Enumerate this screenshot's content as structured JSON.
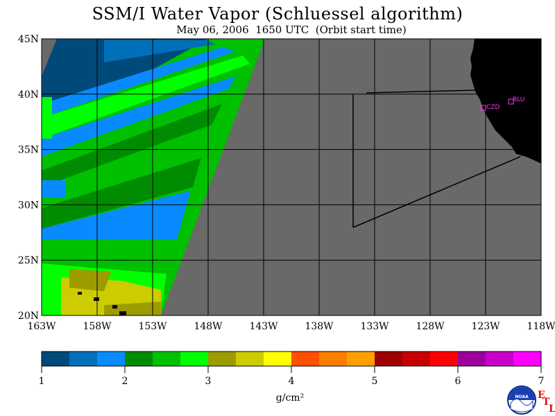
{
  "title": "SSM/I Water Vapor (Schluessel algorithm)",
  "subtitle": "May 06, 2006  1650 UTC  (Orbit start time)",
  "lat_labels": [
    "45N",
    "40N",
    "35N",
    "30N",
    "25N",
    "20N"
  ],
  "lon_labels": [
    "163W",
    "158W",
    "153W",
    "148W",
    "143W",
    "138W",
    "133W",
    "128W",
    "123W",
    "118W"
  ],
  "colorbar": {
    "ticks": [
      "1",
      "2",
      "3",
      "4",
      "5",
      "6",
      "7"
    ],
    "units": "g/cm²",
    "colors": [
      "#004a7a",
      "#0070bb",
      "#0a8aff",
      "#008c00",
      "#00c000",
      "#00ff00",
      "#9c9c00",
      "#cccc00",
      "#ffff00",
      "#ff4f00",
      "#ff7e00",
      "#ffa000",
      "#9c0000",
      "#c80000",
      "#ff0000",
      "#9c009c",
      "#c800c8",
      "#ff00ff"
    ]
  },
  "stations": [
    {
      "name": "CZD"
    },
    {
      "name": "BLU"
    }
  ],
  "logo": {
    "text": "NOAA"
  },
  "etl": {
    "e": "E",
    "t": "T",
    "l": "L"
  },
  "colors": {
    "nodata": "#696969",
    "land": "#000000",
    "grid": "#000000"
  }
}
